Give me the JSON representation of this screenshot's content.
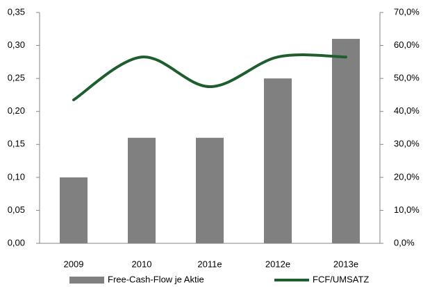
{
  "chart_data": {
    "type": "bar_line",
    "categories": [
      "2009",
      "2010",
      "2011e",
      "2012e",
      "2013e"
    ],
    "series": [
      {
        "name": "Free-Cash-Flow je Aktie",
        "type": "bar",
        "color": "#808080",
        "values": [
          0.1,
          0.16,
          0.16,
          0.25,
          0.31
        ]
      },
      {
        "name": "FCF/UMSATZ",
        "type": "line",
        "axis": "y2",
        "color": "#1e5e2e",
        "values": [
          43.5,
          56.5,
          47.5,
          56.5,
          56.5
        ]
      }
    ],
    "ylim": [
      0,
      0.35
    ],
    "yticks": [
      {
        "value": 0,
        "label": "0,00"
      },
      {
        "value": 0.05,
        "label": "0,05"
      },
      {
        "value": 0.1,
        "label": "0,10"
      },
      {
        "value": 0.15,
        "label": "0,15"
      },
      {
        "value": 0.2,
        "label": "0,20"
      },
      {
        "value": 0.25,
        "label": "0,25"
      },
      {
        "value": 0.3,
        "label": "0,30"
      },
      {
        "value": 0.35,
        "label": "0,35"
      }
    ],
    "y2lim": [
      0,
      70
    ],
    "y2ticks": [
      {
        "value": 0,
        "label": "0,0%"
      },
      {
        "value": 10,
        "label": "10,0%"
      },
      {
        "value": 20,
        "label": "20,0%"
      },
      {
        "value": 30,
        "label": "30,0%"
      },
      {
        "value": 40,
        "label": "40,0%"
      },
      {
        "value": 50,
        "label": "50,0%"
      },
      {
        "value": 60,
        "label": "60,0%"
      },
      {
        "value": 70,
        "label": "70,0%"
      }
    ],
    "legend": "bottom"
  }
}
